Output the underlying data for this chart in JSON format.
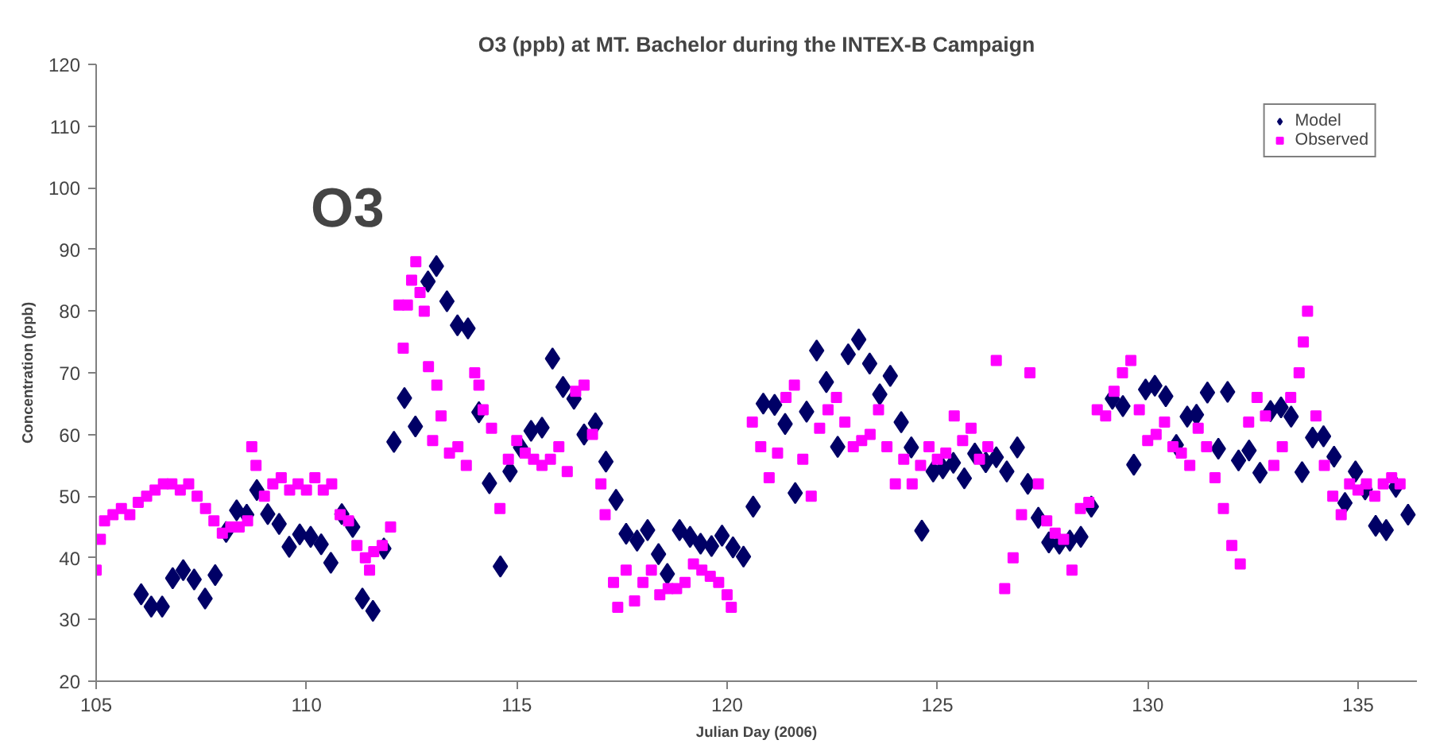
{
  "chart_data": {
    "type": "scatter",
    "title": "O3 (ppb) at MT. Bachelor during the INTEX-B Campaign",
    "xlabel": "Julian Day (2006)",
    "ylabel": "Concentration (ppb)",
    "annotations": [
      "O3"
    ],
    "xlim": [
      105,
      136.4
    ],
    "ylim": [
      20,
      120
    ],
    "xticks": [
      105,
      110,
      115,
      120,
      125,
      130,
      135
    ],
    "yticks": [
      20,
      30,
      40,
      50,
      60,
      70,
      80,
      90,
      100,
      110,
      120
    ],
    "grid": false,
    "legend": "top right",
    "series": [
      {
        "name": "Model",
        "color": "#000066",
        "marker": "diamond",
        "x": [
          106.07,
          106.31,
          106.57,
          106.82,
          107.07,
          107.33,
          107.59,
          107.83,
          108.09,
          108.34,
          108.58,
          108.82,
          109.08,
          109.35,
          109.59,
          109.84,
          110.1,
          110.35,
          110.58,
          110.84,
          111.1,
          111.33,
          111.58,
          111.84,
          112.08,
          112.33,
          112.59,
          112.89,
          113.09,
          113.34,
          113.59,
          113.84,
          114.1,
          114.35,
          114.61,
          114.84,
          115.09,
          115.34,
          115.6,
          115.85,
          116.1,
          116.36,
          116.6,
          116.87,
          117.12,
          117.36,
          117.6,
          117.86,
          118.11,
          118.37,
          118.58,
          118.87,
          119.12,
          119.37,
          119.63,
          119.88,
          120.14,
          120.39,
          120.62,
          120.86,
          121.13,
          121.38,
          121.62,
          121.89,
          122.13,
          122.36,
          122.63,
          122.88,
          123.13,
          123.39,
          123.63,
          123.88,
          124.14,
          124.38,
          124.63,
          124.9,
          125.13,
          125.38,
          125.64,
          125.89,
          126.15,
          126.4,
          126.65,
          126.9,
          127.15,
          127.4,
          127.65,
          127.9,
          128.15,
          128.41,
          128.66,
          129.16,
          129.41,
          129.67,
          129.95,
          130.17,
          130.43,
          130.68,
          130.94,
          131.16,
          131.42,
          131.68,
          131.9,
          132.16,
          132.41,
          132.67,
          132.92,
          133.17,
          133.41,
          133.67,
          133.92,
          134.18,
          134.43,
          134.69,
          134.94,
          135.17,
          135.42,
          135.67,
          135.9,
          136.19
        ],
        "values": [
          34.1,
          32.1,
          32.1,
          36.7,
          38,
          36.5,
          33.4,
          37.2,
          44.2,
          47.7,
          47,
          51,
          47.1,
          45.5,
          41.8,
          43.8,
          43.4,
          42.2,
          39.2,
          47.1,
          45,
          33.4,
          31.4,
          41.5,
          58.8,
          65.9,
          61.3,
          84.8,
          87.3,
          81.6,
          77.7,
          77.2,
          63.6,
          52.1,
          38.6,
          54,
          57.9,
          60.6,
          61.1,
          72.3,
          67.7,
          65.8,
          60,
          61.8,
          55.6,
          49.4,
          43.9,
          42.8,
          44.5,
          40.6,
          37.4,
          44.5,
          43.4,
          42.3,
          41.9,
          43.6,
          41.7,
          40.2,
          48.3,
          65,
          64.8,
          61.7,
          50.5,
          63.7,
          73.6,
          68.5,
          58,
          73,
          75.4,
          71.5,
          66.5,
          69.5,
          62,
          57.9,
          44.4,
          54,
          54.5,
          55.4,
          52.9,
          56.9,
          55.5,
          56.3,
          54,
          57.9,
          52,
          46.5,
          42.5,
          42.3,
          42.8,
          43.4,
          48.3,
          65.8,
          64.6,
          55.1,
          67.3,
          67.9,
          66.2,
          58.3,
          62.9,
          63.2,
          66.8,
          57.7,
          66.9,
          55.8,
          57.4,
          53.8,
          63.8,
          64.4,
          62.9,
          53.9,
          59.5,
          59.7,
          56.4,
          48.9,
          54,
          51.1,
          45.2,
          44.5,
          51.5,
          47
        ]
      },
      {
        "name": "Observed",
        "color": "#ff00ff",
        "marker": "square",
        "x": [
          105.0,
          105.1,
          105.2,
          105.4,
          105.6,
          105.8,
          106.0,
          106.2,
          106.4,
          106.6,
          106.8,
          107.0,
          107.2,
          107.4,
          107.6,
          107.8,
          108.0,
          108.2,
          108.4,
          108.6,
          108.7,
          108.8,
          109.0,
          109.2,
          109.4,
          109.6,
          109.8,
          110.0,
          110.2,
          110.4,
          110.6,
          110.8,
          111.0,
          111.2,
          111.4,
          111.5,
          111.6,
          111.8,
          112.0,
          112.2,
          112.3,
          112.4,
          112.5,
          112.6,
          112.7,
          112.8,
          112.9,
          113.0,
          113.1,
          113.2,
          113.4,
          113.6,
          113.8,
          114.0,
          114.1,
          114.2,
          114.4,
          114.6,
          114.8,
          115.0,
          115.2,
          115.4,
          115.6,
          115.8,
          116.0,
          116.2,
          116.4,
          116.6,
          116.8,
          117.0,
          117.1,
          117.3,
          117.4,
          117.6,
          117.8,
          118.0,
          118.2,
          118.4,
          118.6,
          118.8,
          119.0,
          119.2,
          119.4,
          119.6,
          119.8,
          120.0,
          120.1,
          120.6,
          120.8,
          121.0,
          121.2,
          121.4,
          121.6,
          121.8,
          122.0,
          122.2,
          122.4,
          122.6,
          122.8,
          123.0,
          123.2,
          123.4,
          123.6,
          123.8,
          124.0,
          124.2,
          124.4,
          124.6,
          124.8,
          125.0,
          125.2,
          125.4,
          125.6,
          125.8,
          126.0,
          126.2,
          126.4,
          126.6,
          126.8,
          127.0,
          127.2,
          127.4,
          127.6,
          127.8,
          128.0,
          128.2,
          128.4,
          128.6,
          128.8,
          129.0,
          129.2,
          129.4,
          129.6,
          129.8,
          130.0,
          130.2,
          130.4,
          130.6,
          130.8,
          131.0,
          131.2,
          131.4,
          131.6,
          131.8,
          132.0,
          132.2,
          132.4,
          132.6,
          132.8,
          133.0,
          133.2,
          133.4,
          133.6,
          133.7,
          133.8,
          134.0,
          134.2,
          134.4,
          134.6,
          134.8,
          135.0,
          135.2,
          135.4,
          135.6,
          135.8,
          136.0
        ],
        "values": [
          38,
          43,
          46,
          47,
          48,
          47,
          49,
          50,
          51,
          52,
          52,
          51,
          52,
          50,
          48,
          46,
          44,
          45,
          45,
          46,
          58,
          55,
          50,
          52,
          53,
          51,
          52,
          51,
          53,
          51,
          52,
          47,
          46,
          42,
          40,
          38,
          41,
          42,
          45,
          81,
          74,
          81,
          85,
          88,
          83,
          80,
          71,
          59,
          68,
          63,
          57,
          58,
          55,
          70,
          68,
          64,
          61,
          48,
          56,
          59,
          57,
          56,
          55,
          56,
          58,
          54,
          67,
          68,
          60,
          52,
          47,
          36,
          32,
          38,
          33,
          36,
          38,
          34,
          35,
          35,
          36,
          39,
          38,
          37,
          36,
          34,
          32,
          62,
          58,
          53,
          57,
          66,
          68,
          56,
          50,
          61,
          64,
          66,
          62,
          58,
          59,
          60,
          64,
          58,
          52,
          56,
          52,
          55,
          58,
          56,
          57,
          63,
          59,
          61,
          56,
          58,
          72,
          35,
          40,
          47,
          70,
          52,
          46,
          44,
          43,
          38,
          48,
          49,
          64,
          63,
          67,
          70,
          72,
          64,
          59,
          60,
          62,
          58,
          57,
          55,
          61,
          58,
          53,
          48,
          42,
          39,
          62,
          66,
          63,
          55,
          58,
          66,
          70,
          75,
          80,
          63,
          55,
          50,
          47,
          52,
          51,
          52,
          50,
          52,
          53,
          52
        ]
      }
    ]
  }
}
